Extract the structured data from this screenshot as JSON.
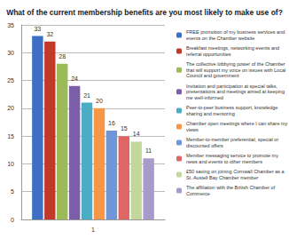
{
  "chart_data": {
    "type": "bar",
    "title": "What of the current membership benefits are you most likely to make use of?",
    "categories": [
      "1"
    ],
    "series": [
      {
        "name": "FREE promotion of my business services and events on the Chamber website",
        "color": "#3d6fc6",
        "values": [
          33
        ]
      },
      {
        "name": "Breakfast meetings, networking events and referral opportunities",
        "color": "#c0392b",
        "values": [
          32
        ]
      },
      {
        "name": "The collective lobbying power of the Chamber that will support my voice on issues with Local Council and government",
        "color": "#9bbb59",
        "values": [
          28
        ]
      },
      {
        "name": "Invitation and participation at special talks, presentations and meetings aimed at keeping me well-informed",
        "color": "#7b5ea7",
        "values": [
          24
        ]
      },
      {
        "name": "Peer-to-peer business support, knowledge sharing and mentoring",
        "color": "#4bacc6",
        "values": [
          21
        ]
      },
      {
        "name": "Chamber open meetings where I can share my views",
        "color": "#f79646",
        "values": [
          20
        ]
      },
      {
        "name": "Member-to-member preferential, special or discounted offers",
        "color": "#6f97d8",
        "values": [
          16
        ]
      },
      {
        "name": "Member messaging service to promote my news and events to other members",
        "color": "#e06666",
        "values": [
          15
        ]
      },
      {
        "name": "£50 saving on joining Cornwall Chamber as a St. Austell Bay Chamber member",
        "color": "#c3d69b",
        "values": [
          14
        ]
      },
      {
        "name": "The affiliation with the British Chamber of Commerce",
        "color": "#a89bcc",
        "values": [
          11
        ]
      }
    ],
    "ylim": [
      0,
      35
    ],
    "yticks": [
      0,
      5,
      10,
      15,
      20,
      25,
      30,
      35
    ],
    "grid": true,
    "data_labels": true,
    "legend": "right"
  }
}
